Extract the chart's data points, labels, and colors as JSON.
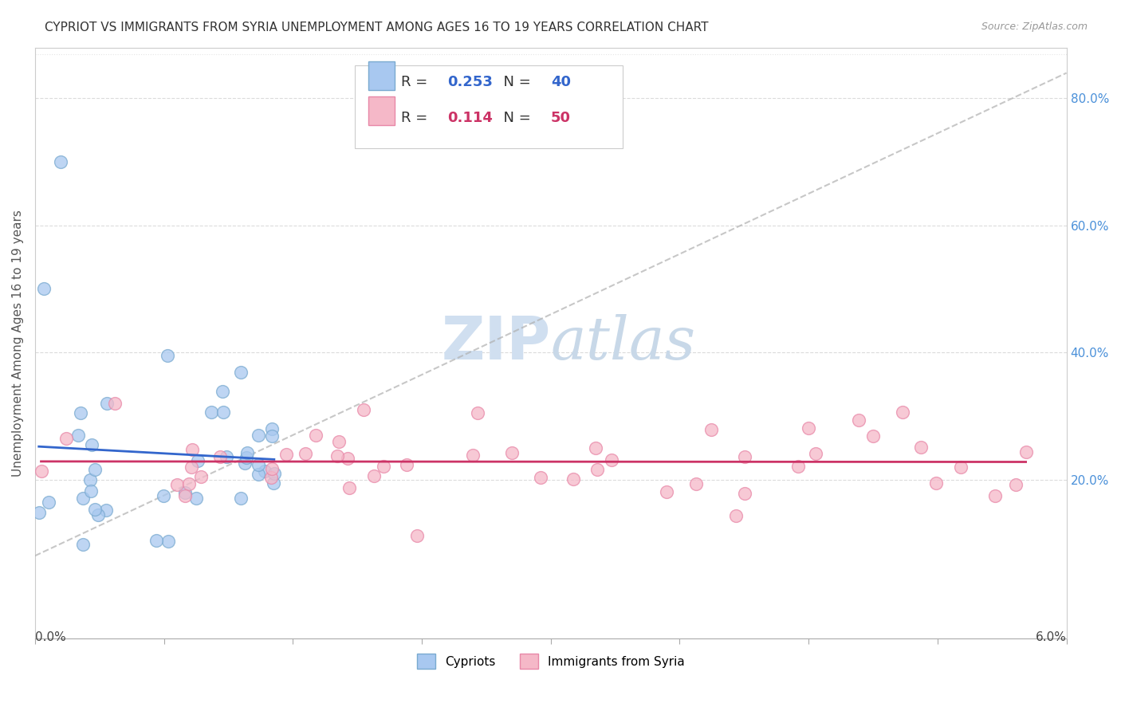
{
  "title": "CYPRIOT VS IMMIGRANTS FROM SYRIA UNEMPLOYMENT AMONG AGES 16 TO 19 YEARS CORRELATION CHART",
  "source": "Source: ZipAtlas.com",
  "ylabel": "Unemployment Among Ages 16 to 19 years",
  "x_range": [
    0.0,
    0.06
  ],
  "y_range": [
    -0.05,
    0.88
  ],
  "cypriot_R": 0.253,
  "cypriot_N": 40,
  "syria_R": 0.114,
  "syria_N": 50,
  "cypriot_color": "#a8c8f0",
  "cypriot_edge_color": "#7aaad0",
  "syria_color": "#f5b8c8",
  "syria_edge_color": "#e888a8",
  "cypriot_line_color": "#3366cc",
  "syria_line_color": "#cc3366",
  "diagonal_color": "#b0b0b0",
  "background_color": "#ffffff",
  "watermark_color": "#d0dff0",
  "right_tick_color": "#4a90d9",
  "grid_color": "#cccccc"
}
